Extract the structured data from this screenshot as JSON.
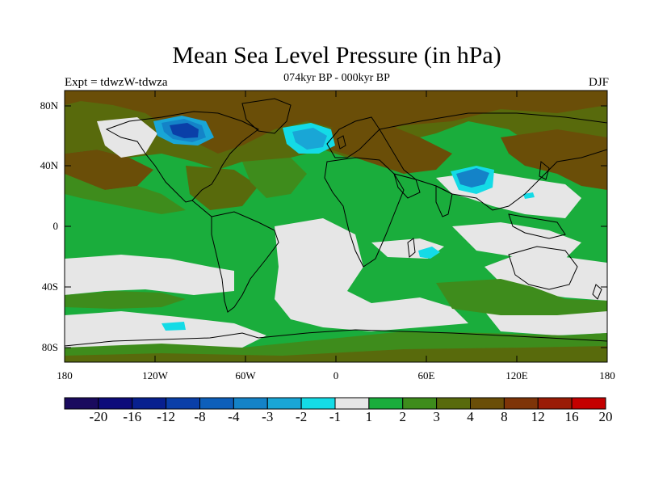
{
  "title": "Mean Sea Level Pressure (in hPa)",
  "subtitle": "074kyr BP - 000kyr BP",
  "experiment": "Expt = tdwzW-tdwza",
  "season": "DJF",
  "lat_labels": [
    "80N",
    "40N",
    "0",
    "40S",
    "80S"
  ],
  "lon_labels": [
    "180",
    "120W",
    "60W",
    "0",
    "60E",
    "120E",
    "180"
  ],
  "colorbar": {
    "colors": [
      "#1a0a5e",
      "#0d0b7a",
      "#08208f",
      "#0a3fa8",
      "#0e5fba",
      "#1483c8",
      "#19a6d6",
      "#14dbe6",
      "#e6e6e6",
      "#1aad3c",
      "#3e8c1c",
      "#586a0c",
      "#6a4e08",
      "#7e3408",
      "#9a1c06",
      "#c40000"
    ],
    "labels": [
      "-20",
      "-16",
      "-12",
      "-8",
      "-4",
      "-3",
      "-2",
      "-1",
      "1",
      "2",
      "3",
      "4",
      "8",
      "12",
      "16",
      "20"
    ]
  },
  "field_colors": {
    "ocean_default": "#1aad3c",
    "positive_dark": "#586a0c",
    "positive_mid": "#3e8c1c",
    "positive_brown": "#6a4e08",
    "near_zero": "#e6e6e6",
    "neg_light": "#14dbe6",
    "neg_mid": "#19a6d6",
    "neg_strong": "#1483c8",
    "neg_deep": "#0a3fa8",
    "coastline": "#000000"
  }
}
